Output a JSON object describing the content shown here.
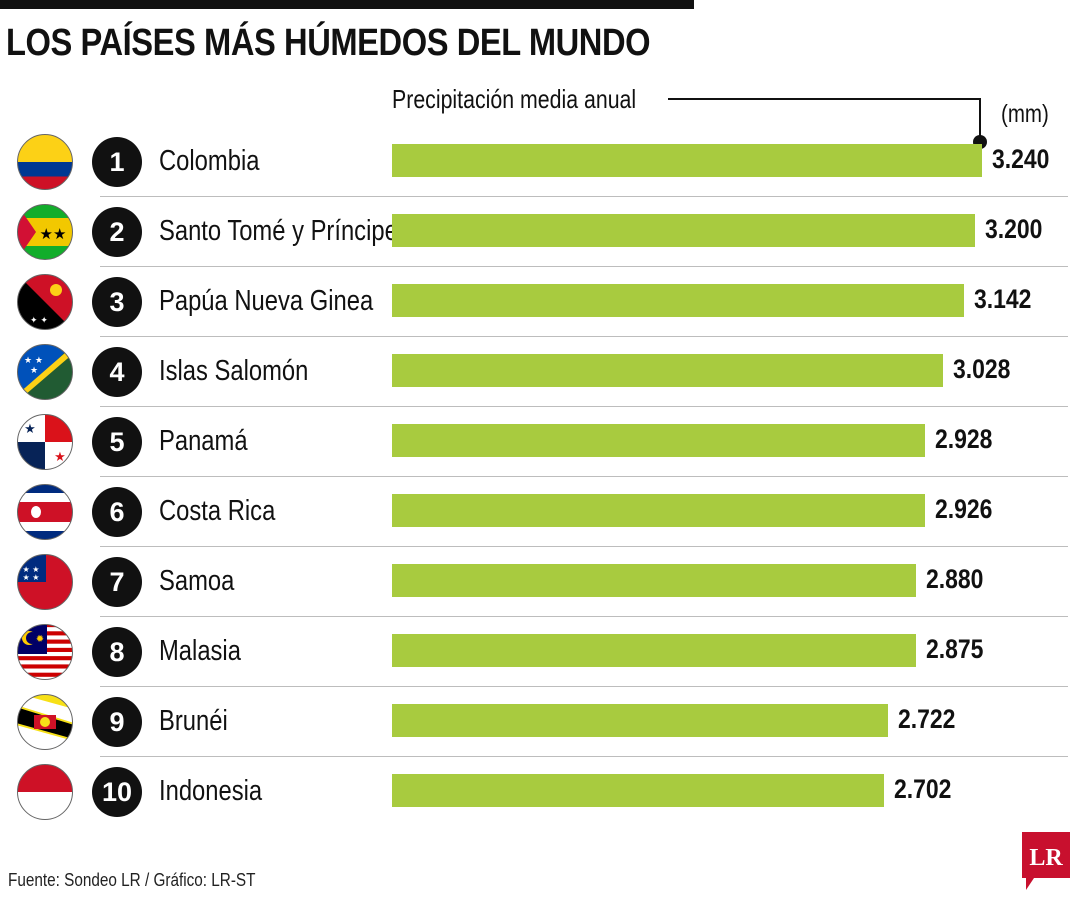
{
  "title": "LOS PAÍSES MÁS HÚMEDOS DEL MUNDO",
  "subtitle": "Precipitación media anual",
  "unit": "(mm)",
  "source": "Fuente: Sondeo LR / Gráfico: LR-ST",
  "logo_text": "LR",
  "colors": {
    "bar": "#a8cb3f",
    "rank_circle": "#111111",
    "logo": "#c8102e"
  },
  "chart_data": {
    "type": "bar",
    "orientation": "horizontal",
    "title": "LOS PAÍSES MÁS HÚMEDOS DEL MUNDO",
    "xlabel": "Precipitación media anual (mm)",
    "ylabel": "",
    "xlim": [
      0,
      3240
    ],
    "categories": [
      "Colombia",
      "Santo Tomé y Príncipe",
      "Papúa Nueva Ginea",
      "Islas Salomón",
      "Panamá",
      "Costa Rica",
      "Samoa",
      "Malasia",
      "Brunéi",
      "Indonesia"
    ],
    "values": [
      3240,
      3200,
      3142,
      3028,
      2928,
      2926,
      2880,
      2875,
      2722,
      2702
    ],
    "ranks": [
      "1",
      "2",
      "3",
      "4",
      "5",
      "6",
      "7",
      "8",
      "9",
      "10"
    ],
    "value_labels": [
      "3.240",
      "3.200",
      "3.142",
      "3.028",
      "2.928",
      "2.926",
      "2.880",
      "2.875",
      "2.722",
      "2.702"
    ],
    "flag_icons": [
      "colombia-flag-icon",
      "sao-tome-flag-icon",
      "papua-new-guinea-flag-icon",
      "solomon-islands-flag-icon",
      "panama-flag-icon",
      "costa-rica-flag-icon",
      "samoa-flag-icon",
      "malaysia-flag-icon",
      "brunei-flag-icon",
      "indonesia-flag-icon"
    ]
  }
}
